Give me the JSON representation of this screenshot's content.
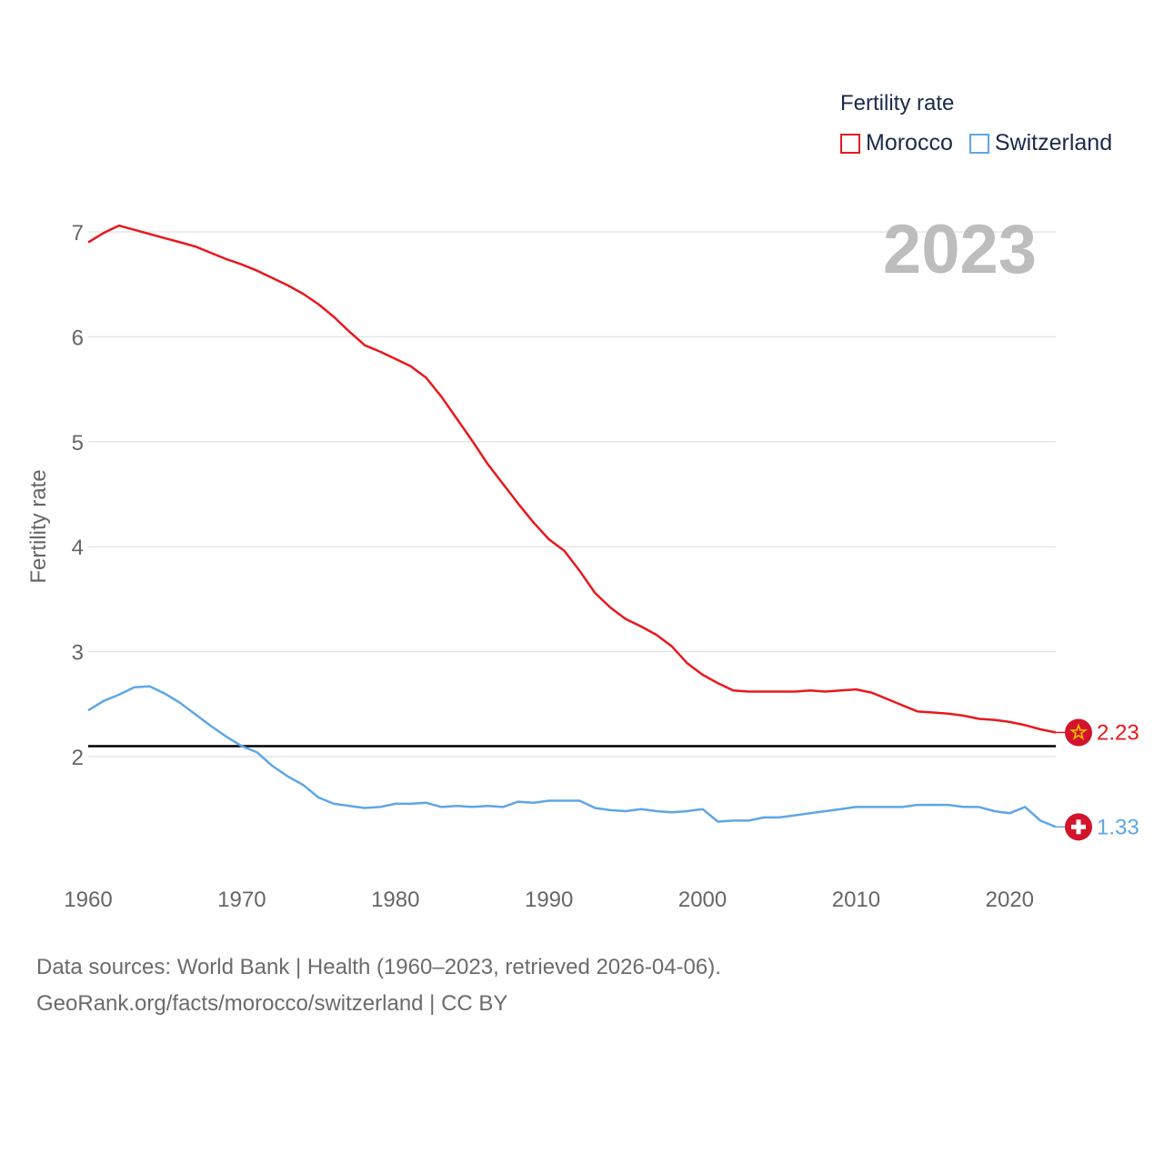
{
  "legend": {
    "title": "Fertility rate",
    "items": [
      {
        "label": "Morocco",
        "color": "#e8181e"
      },
      {
        "label": "Switzerland",
        "color": "#5ea6e6"
      }
    ]
  },
  "footer": {
    "line1": "Data sources: World Bank | Health (1960–2023, retrieved 2026-04-06).",
    "line2": "GeoRank.org/facts/morocco/switzerland | CC BY"
  },
  "chart_data": {
    "type": "line",
    "title": "Fertility rate",
    "year_label": "2023",
    "ylabel": "Fertility rate",
    "xlabel": "",
    "xlim": [
      1960,
      2023
    ],
    "ylim": [
      1,
      7.2
    ],
    "yticks": [
      2,
      3,
      4,
      5,
      6,
      7
    ],
    "xticks": [
      1960,
      1970,
      1980,
      1990,
      2000,
      2010,
      2020
    ],
    "grid": true,
    "legend_position": "top-right",
    "reference_line": {
      "y": 2.1,
      "color": "#000000"
    },
    "x": [
      1960,
      1961,
      1962,
      1963,
      1964,
      1965,
      1966,
      1967,
      1968,
      1969,
      1970,
      1971,
      1972,
      1973,
      1974,
      1975,
      1976,
      1977,
      1978,
      1979,
      1980,
      1981,
      1982,
      1983,
      1984,
      1985,
      1986,
      1987,
      1988,
      1989,
      1990,
      1991,
      1992,
      1993,
      1994,
      1995,
      1996,
      1997,
      1998,
      1999,
      2000,
      2001,
      2002,
      2003,
      2004,
      2005,
      2006,
      2007,
      2008,
      2009,
      2010,
      2011,
      2012,
      2013,
      2014,
      2015,
      2016,
      2017,
      2018,
      2019,
      2020,
      2021,
      2022,
      2023
    ],
    "series": [
      {
        "name": "Morocco",
        "color": "#e8181e",
        "end_label": "2.23",
        "values": [
          6.9,
          6.99,
          7.06,
          7.02,
          6.98,
          6.94,
          6.9,
          6.86,
          6.8,
          6.74,
          6.69,
          6.63,
          6.56,
          6.49,
          6.41,
          6.31,
          6.19,
          6.05,
          5.92,
          5.86,
          5.79,
          5.72,
          5.61,
          5.43,
          5.22,
          5.01,
          4.79,
          4.6,
          4.41,
          4.23,
          4.07,
          3.96,
          3.77,
          3.56,
          3.42,
          3.31,
          3.24,
          3.16,
          3.05,
          2.89,
          2.78,
          2.7,
          2.63,
          2.62,
          2.62,
          2.62,
          2.62,
          2.63,
          2.62,
          2.63,
          2.64,
          2.61,
          2.55,
          2.49,
          2.43,
          2.42,
          2.41,
          2.39,
          2.36,
          2.35,
          2.33,
          2.3,
          2.26,
          2.23
        ]
      },
      {
        "name": "Switzerland",
        "color": "#5ea6e6",
        "end_label": "1.33",
        "values": [
          2.44,
          2.53,
          2.59,
          2.66,
          2.67,
          2.6,
          2.51,
          2.4,
          2.29,
          2.19,
          2.1,
          2.04,
          1.91,
          1.81,
          1.73,
          1.61,
          1.55,
          1.53,
          1.51,
          1.52,
          1.55,
          1.55,
          1.56,
          1.52,
          1.53,
          1.52,
          1.53,
          1.52,
          1.57,
          1.56,
          1.58,
          1.58,
          1.58,
          1.51,
          1.49,
          1.48,
          1.5,
          1.48,
          1.47,
          1.48,
          1.5,
          1.38,
          1.39,
          1.39,
          1.42,
          1.42,
          1.44,
          1.46,
          1.48,
          1.5,
          1.52,
          1.52,
          1.52,
          1.52,
          1.54,
          1.54,
          1.54,
          1.52,
          1.52,
          1.48,
          1.46,
          1.52,
          1.39,
          1.33
        ]
      }
    ]
  }
}
